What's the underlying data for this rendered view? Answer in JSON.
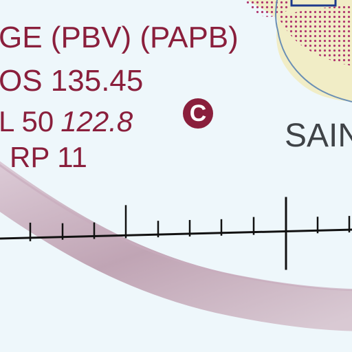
{
  "colors": {
    "background": "#eef7fb",
    "label_text": "#8a1f3c",
    "town_fill": "#f1edc6",
    "town_outline": "#6a8fb5",
    "stipple": "#b0386f",
    "arc": "#a77f92",
    "scale_line": "#111111",
    "city_text": "#3f4347",
    "box_outline": "#1e3a8c"
  },
  "labels": {
    "line1": "GE (PBV) (PAPB)",
    "line2": "OS  135.45",
    "line3_prefix": "L 50",
    "line3_freq": "122.8",
    "line4": "RP 11",
    "badge_letter": "C",
    "city": "SAIN"
  },
  "icons": {
    "badge": "circled-c-icon"
  }
}
